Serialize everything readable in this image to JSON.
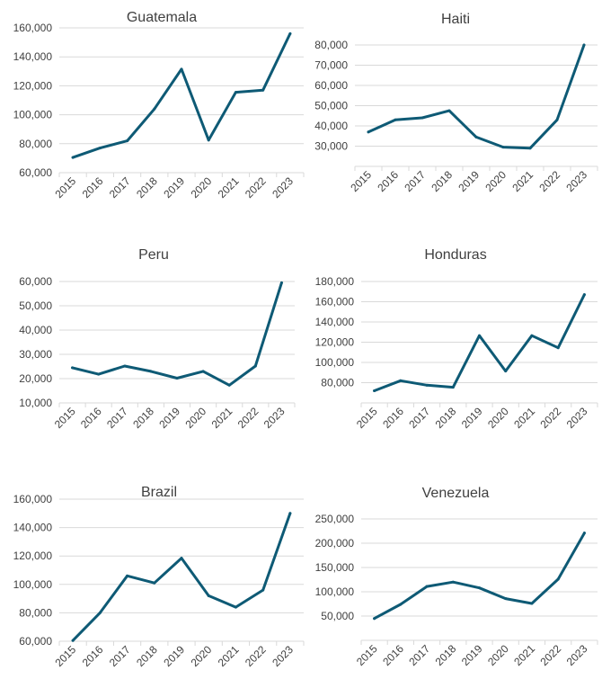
{
  "colors": {
    "line": "#0e5a75",
    "text": "#404040",
    "grid": "#d9d9d9"
  },
  "chart_data": [
    {
      "type": "line",
      "title": "Guatemala",
      "x": [
        "2015",
        "2016",
        "2017",
        "2018",
        "2019",
        "2020",
        "2021",
        "2022",
        "2023"
      ],
      "values": [
        70500,
        77000,
        82000,
        104000,
        131500,
        82500,
        115500,
        117000,
        156000
      ],
      "ylim": [
        60000,
        160000
      ],
      "yticks": [
        60000,
        80000,
        100000,
        120000,
        140000,
        160000
      ],
      "ytick_labels": [
        "60,000",
        "80,000",
        "100,000",
        "120,000",
        "140,000",
        "160,000"
      ],
      "grid": true
    },
    {
      "type": "line",
      "title": "Haiti",
      "x": [
        "2015",
        "2016",
        "2017",
        "2018",
        "2019",
        "2020",
        "2021",
        "2022",
        "2023"
      ],
      "values": [
        37000,
        43000,
        44000,
        47500,
        34500,
        29500,
        29000,
        43000,
        80000
      ],
      "ylim": [
        20000,
        80000
      ],
      "yticks": [
        30000,
        40000,
        50000,
        60000,
        70000,
        80000
      ],
      "ytick_labels": [
        "30,000",
        "40,000",
        "50,000",
        "60,000",
        "70,000",
        "80,000"
      ],
      "grid": true
    },
    {
      "type": "line",
      "title": "Peru",
      "x": [
        "2015",
        "2016",
        "2017",
        "2018",
        "2019",
        "2020",
        "2021",
        "2022",
        "2023"
      ],
      "values": [
        24500,
        21800,
        25200,
        23000,
        20200,
        23000,
        17300,
        25200,
        59500
      ],
      "ylim": [
        10000,
        60000
      ],
      "yticks": [
        10000,
        20000,
        30000,
        40000,
        50000,
        60000
      ],
      "ytick_labels": [
        "10,000",
        "20,000",
        "30,000",
        "40,000",
        "50,000",
        "60,000"
      ],
      "grid": true
    },
    {
      "type": "line",
      "title": "Honduras",
      "x": [
        "2015",
        "2016",
        "2017",
        "2018",
        "2019",
        "2020",
        "2021",
        "2022",
        "2023"
      ],
      "values": [
        72000,
        82000,
        77500,
        75500,
        126500,
        91500,
        126500,
        114500,
        167000
      ],
      "ylim": [
        60000,
        180000
      ],
      "yticks": [
        80000,
        100000,
        120000,
        140000,
        160000,
        180000
      ],
      "ytick_labels": [
        "80,000",
        "100,000",
        "120,000",
        "140,000",
        "160,000",
        "180,000"
      ],
      "grid": true
    },
    {
      "type": "line",
      "title": "Brazil",
      "x": [
        "2015",
        "2016",
        "2017",
        "2018",
        "2019",
        "2020",
        "2021",
        "2022",
        "2023"
      ],
      "values": [
        60500,
        80000,
        106000,
        101000,
        118500,
        92000,
        84000,
        96000,
        150000
      ],
      "ylim": [
        60000,
        160000
      ],
      "yticks": [
        60000,
        80000,
        100000,
        120000,
        140000,
        160000
      ],
      "ytick_labels": [
        "60,000",
        "80,000",
        "100,000",
        "120,000",
        "140,000",
        "160,000"
      ],
      "grid": true
    },
    {
      "type": "line",
      "title": "Venezuela",
      "x": [
        "2015",
        "2016",
        "2017",
        "2018",
        "2019",
        "2020",
        "2021",
        "2022",
        "2023"
      ],
      "values": [
        45000,
        74000,
        111000,
        120000,
        108000,
        86000,
        76000,
        126000,
        221000
      ],
      "ylim": [
        0,
        250000
      ],
      "yticks": [
        50000,
        100000,
        150000,
        200000,
        250000
      ],
      "ytick_labels": [
        "50,000",
        "100,000",
        "150,000",
        "200,000",
        "250,000"
      ],
      "grid": true
    }
  ]
}
